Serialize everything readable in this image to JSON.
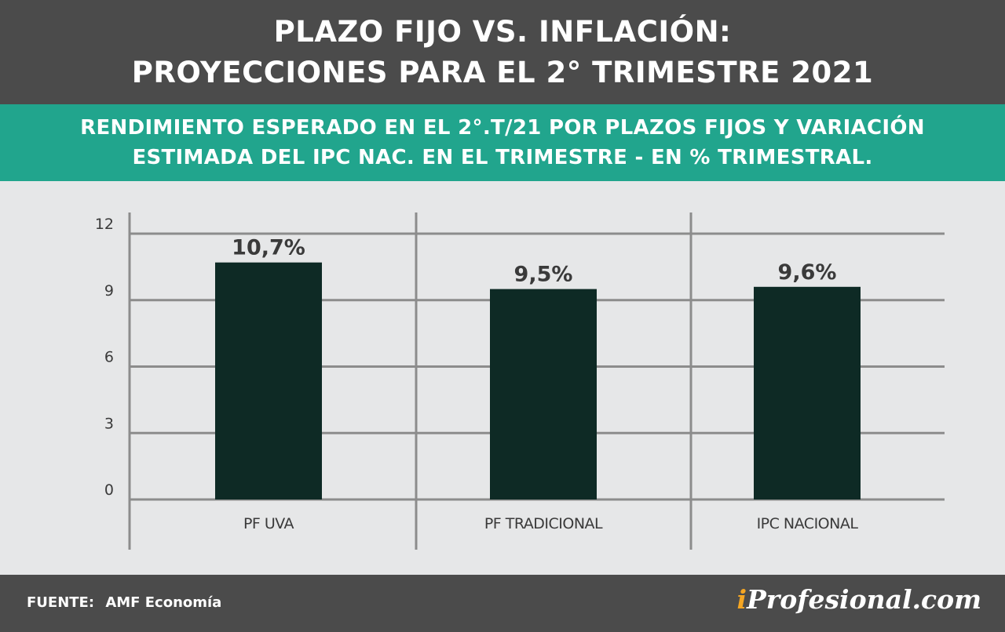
{
  "header": {
    "title_line1": "PLAZO FIJO VS. INFLACIÓN:",
    "title_line2": "PROYECCIONES PARA EL 2° TRIMESTRE 2021"
  },
  "subheader": {
    "line1": "RENDIMIENTO ESPERADO EN EL 2°.T/21 POR PLAZOS FIJOS Y VARIACIÓN",
    "line2": "ESTIMADA DEL IPC NAC. EN EL TRIMESTRE - EN % TRIMESTRAL."
  },
  "chart_data": {
    "type": "bar",
    "categories": [
      "PF UVA",
      "PF TRADICIONAL",
      "IPC NACIONAL"
    ],
    "values": [
      10.7,
      9.5,
      9.6
    ],
    "data_labels": [
      "10,7%",
      "9,5%",
      "9,6%"
    ],
    "yticks": [
      0,
      3,
      6,
      9,
      12
    ],
    "ylim": [
      0,
      12
    ],
    "grid": true,
    "bar_color": "#0e2a25"
  },
  "footer": {
    "source_label": "FUENTE:",
    "source_value": "AMF Economía",
    "brand_i": "i",
    "brand_rest": "Profesional.com"
  },
  "colors": {
    "header_bg": "#4b4b4b",
    "subheader_bg": "#21a58d",
    "chart_bg": "#e6e7e8",
    "brand_accent": "#f5a623"
  }
}
